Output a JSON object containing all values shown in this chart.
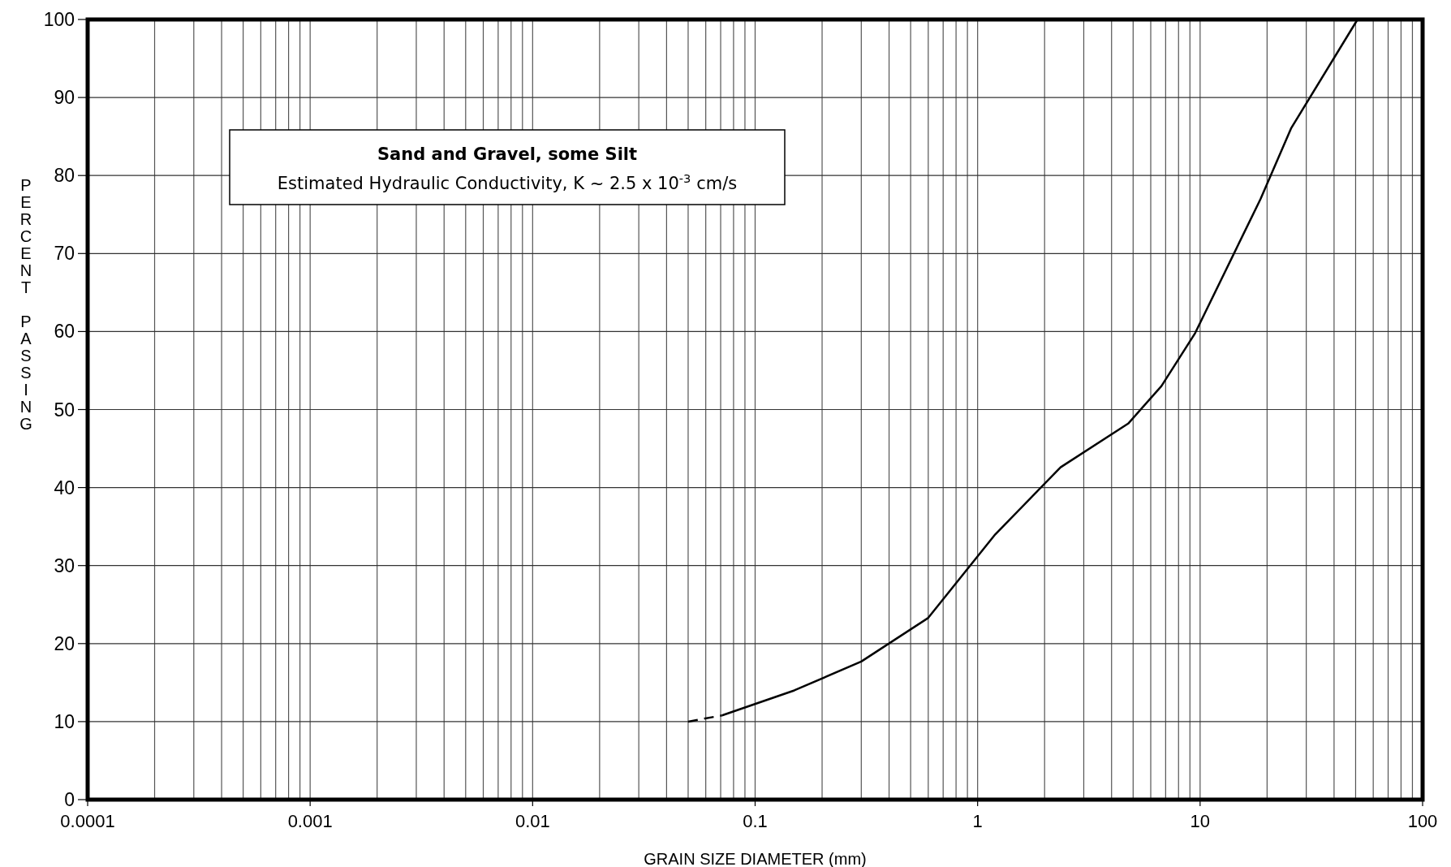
{
  "chart_data": {
    "type": "line",
    "xlabel": "GRAIN SIZE DIAMETER (mm)",
    "ylabel": "PERCENT PASSING",
    "annotations": [
      "Sand and Gravel, some Silt",
      "Estimated Hydraulic Conductivity, K ~ 2.5 x 10$^{-3}$ cm/s"
    ],
    "log": "x",
    "grid": true,
    "xlim": [
      0.0001,
      100
    ],
    "xticks": [
      0.0001,
      0.001,
      0.01,
      0.1,
      1,
      10,
      100
    ],
    "ylim": [
      0,
      100
    ],
    "yticks": [
      0,
      10,
      20,
      30,
      40,
      50,
      60,
      70,
      80,
      90,
      100
    ],
    "series": [
      {
        "color": "#000000",
        "line_style": "dashed",
        "x": [
          0.05,
          0.071
        ],
        "values": [
          10,
          10.8
        ]
      },
      {
        "color": "#000000",
        "line_style": "solid",
        "x": [
          0.071,
          0.15,
          0.3,
          0.6,
          1.2,
          2.36,
          4.75,
          6.7,
          9.5,
          18.7,
          25.7,
          51
        ],
        "values": [
          10.8,
          14,
          17.7,
          23.3,
          34,
          42.6,
          48.2,
          53,
          59.8,
          77,
          86.1,
          100
        ]
      }
    ]
  }
}
